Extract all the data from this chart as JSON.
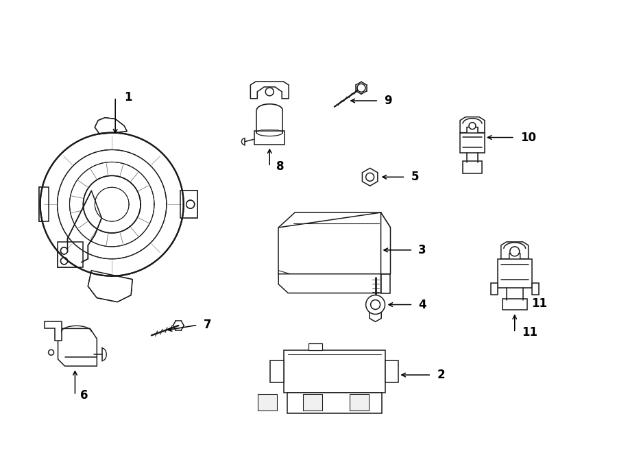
{
  "background_color": "#ffffff",
  "line_color": "#1a1a1a",
  "line_width": 1.1,
  "fig_width": 9.0,
  "fig_height": 6.61,
  "dpi": 100
}
